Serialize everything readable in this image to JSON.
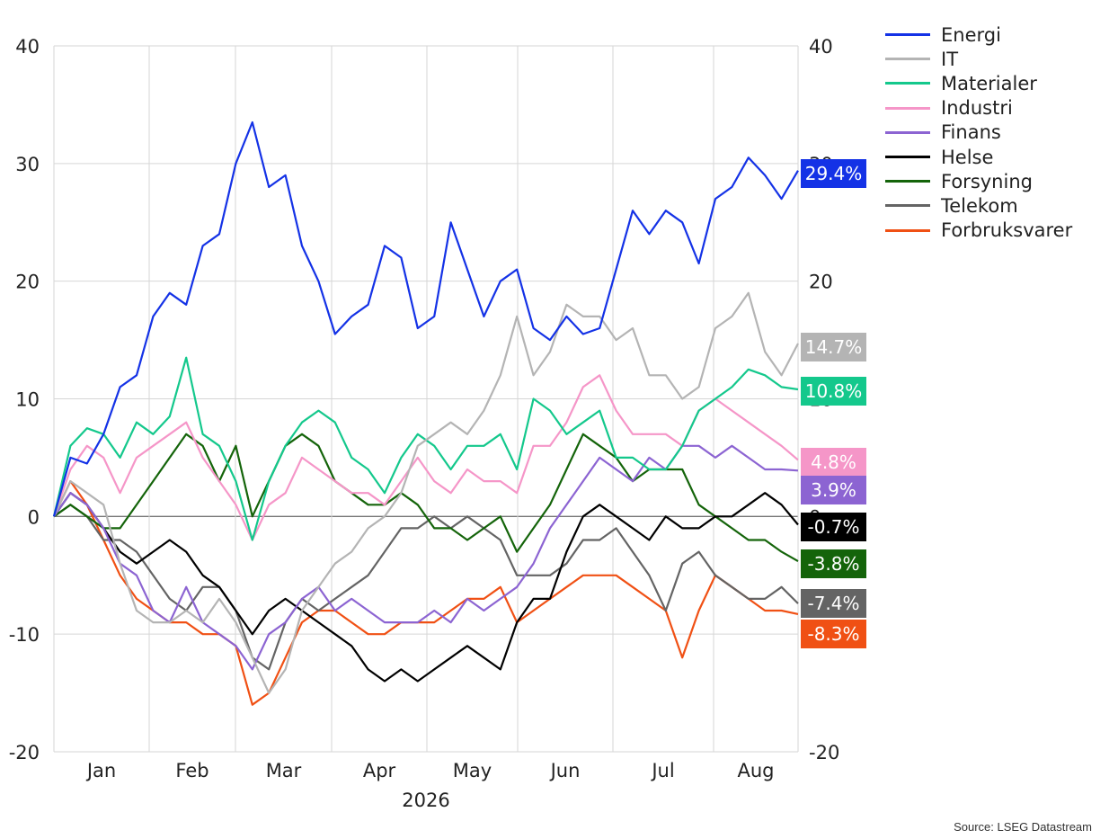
{
  "source": "Source: LSEG Datastream",
  "chart_data": {
    "type": "line",
    "title": "",
    "xlabel": "2026",
    "ylabel": "",
    "ylim": [
      -20,
      40
    ],
    "yticks": [
      "40",
      "30",
      "20",
      "10",
      "0",
      "-10",
      "-20"
    ],
    "months": [
      "Jan",
      "Feb",
      "Mar",
      "Apr",
      "May",
      "Jun",
      "Jul",
      "Aug"
    ],
    "grid": true,
    "legend_position": "top-right, outside plot",
    "series": [
      {
        "name": "Energi",
        "color": "#1432e6",
        "end_label": "29.4%",
        "values": [
          0,
          5,
          4.5,
          7,
          11,
          12,
          17,
          19,
          18,
          23,
          24,
          30,
          33.5,
          28,
          29,
          23,
          20,
          15.5,
          17,
          18,
          23,
          22,
          16,
          17,
          25,
          21,
          17,
          20,
          21,
          16,
          15,
          17,
          15.5,
          16,
          21,
          26,
          24,
          26,
          25,
          21.5,
          27,
          28,
          30.5,
          29,
          27,
          29.4
        ]
      },
      {
        "name": "IT",
        "color": "#b4b4b4",
        "end_label": "14.7%",
        "values": [
          0,
          3,
          2,
          1,
          -4,
          -8,
          -9,
          -9,
          -8,
          -9,
          -7,
          -9,
          -12,
          -15,
          -13,
          -8,
          -6,
          -4,
          -3,
          -1,
          0,
          2,
          6,
          7,
          8,
          7,
          9,
          12,
          17,
          12,
          14,
          18,
          17,
          17,
          15,
          16,
          12,
          12,
          10,
          11,
          16,
          17,
          19,
          14,
          12,
          14.7
        ]
      },
      {
        "name": "Materialer",
        "color": "#14c88c",
        "end_label": "10.8%",
        "values": [
          0,
          6,
          7.5,
          7,
          5,
          8,
          7,
          8.5,
          13.5,
          7,
          6,
          3,
          -2,
          3,
          6,
          8,
          9,
          8,
          5,
          4,
          2,
          5,
          7,
          6,
          4,
          6,
          6,
          7,
          4,
          10,
          9,
          7,
          8,
          9,
          5,
          5,
          4,
          4,
          6,
          9,
          10,
          11,
          12.5,
          12,
          11,
          10.8
        ]
      },
      {
        "name": "Industri",
        "color": "#f596c8",
        "end_label": "4.8%",
        "values": [
          0,
          4,
          6,
          5,
          2,
          5,
          6,
          7,
          8,
          5,
          3,
          1,
          -2,
          1,
          2,
          5,
          4,
          3,
          2,
          2,
          1,
          3,
          5,
          3,
          2,
          4,
          3,
          3,
          2,
          6,
          6,
          8,
          11,
          12,
          9,
          7,
          7,
          7,
          6,
          9,
          10,
          9,
          8,
          7,
          6,
          4.8
        ]
      },
      {
        "name": "Finans",
        "color": "#8c64d2",
        "end_label": "3.9%",
        "values": [
          0,
          2,
          1,
          -1,
          -4,
          -5,
          -8,
          -9,
          -6,
          -9,
          -10,
          -11,
          -13,
          -10,
          -9,
          -7,
          -6,
          -8,
          -7,
          -8,
          -9,
          -9,
          -9,
          -8,
          -9,
          -7,
          -8,
          -7,
          -6,
          -4,
          -1,
          1,
          3,
          5,
          4,
          3,
          5,
          4,
          6,
          6,
          5,
          6,
          5,
          4,
          4,
          3.9
        ]
      },
      {
        "name": "Helse",
        "color": "#000000",
        "end_label": "-0.7%",
        "values": [
          0,
          2,
          1,
          -1,
          -3,
          -4,
          -3,
          -2,
          -3,
          -5,
          -6,
          -8,
          -10,
          -8,
          -7,
          -8,
          -9,
          -10,
          -11,
          -13,
          -14,
          -13,
          -14,
          -13,
          -12,
          -11,
          -12,
          -13,
          -9,
          -7,
          -7,
          -3,
          0,
          1,
          0,
          -1,
          -2,
          0,
          -1,
          -1,
          0,
          0,
          1,
          2,
          1,
          -0.7
        ]
      },
      {
        "name": "Forsyning",
        "color": "#14640a",
        "end_label": "-3.8%",
        "values": [
          0,
          1,
          0,
          -1,
          -1,
          1,
          3,
          5,
          7,
          6,
          3,
          6,
          0,
          3,
          6,
          7,
          6,
          3,
          2,
          1,
          1,
          2,
          1,
          -1,
          -1,
          -2,
          -1,
          0,
          -3,
          -1,
          1,
          4,
          7,
          6,
          5,
          3,
          4,
          4,
          4,
          1,
          0,
          -1,
          -2,
          -2,
          -3,
          -3.8
        ]
      },
      {
        "name": "Telekom",
        "color": "#646464",
        "end_label": "-7.4%",
        "values": [
          0,
          1,
          0,
          -2,
          -2,
          -3,
          -5,
          -7,
          -8,
          -6,
          -6,
          -8,
          -12,
          -13,
          -9,
          -7,
          -8,
          -7,
          -6,
          -5,
          -3,
          -1,
          -1,
          0,
          -1,
          0,
          -1,
          -2,
          -5,
          -5,
          -5,
          -4,
          -2,
          -2,
          -1,
          -3,
          -5,
          -8,
          -4,
          -3,
          -5,
          -6,
          -7,
          -7,
          -6,
          -7.4
        ]
      },
      {
        "name": "Forbruksvarer",
        "color": "#f05014",
        "end_label": "-8.3%",
        "values": [
          0,
          3,
          1,
          -2,
          -5,
          -7,
          -8,
          -9,
          -9,
          -10,
          -10,
          -11,
          -16,
          -15,
          -12,
          -9,
          -8,
          -8,
          -9,
          -10,
          -10,
          -9,
          -9,
          -9,
          -8,
          -7,
          -7,
          -6,
          -9,
          -8,
          -7,
          -6,
          -5,
          -5,
          -5,
          -6,
          -7,
          -8,
          -12,
          -8,
          -5,
          -6,
          -7,
          -8,
          -8,
          -8.3
        ]
      }
    ]
  }
}
